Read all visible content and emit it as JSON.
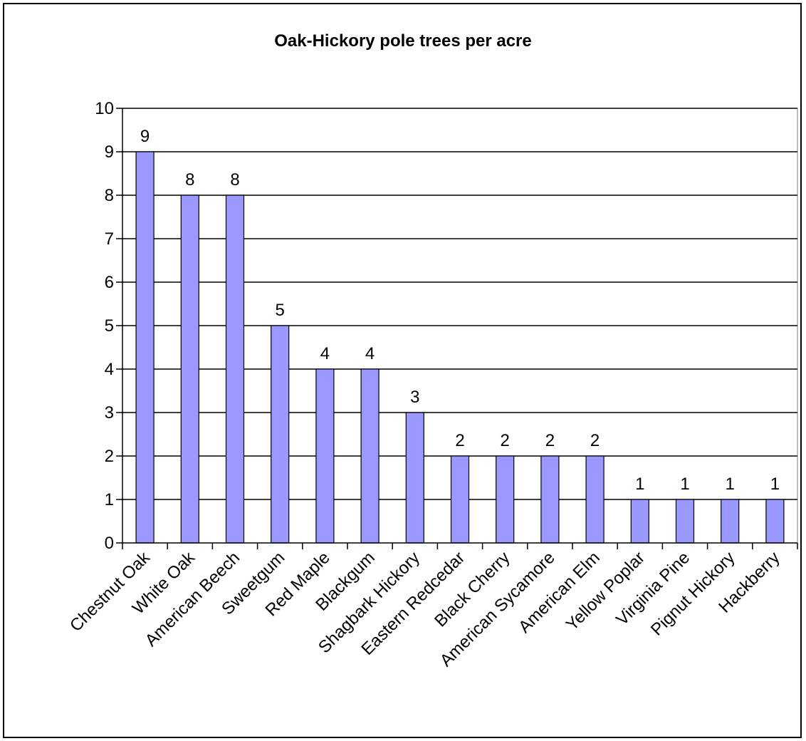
{
  "chart_data": {
    "type": "bar",
    "title": "Oak-Hickory pole trees per acre",
    "xlabel": "",
    "ylabel": "",
    "ylim": [
      0,
      10
    ],
    "yticks": [
      "0",
      "1",
      "2",
      "3",
      "4",
      "5",
      "6",
      "7",
      "8",
      "9",
      "10"
    ],
    "categories": [
      "Chestnut Oak",
      "White Oak",
      "American Beech",
      "Sweetgum",
      "Red Maple",
      "Blackgum",
      "Shagbark Hickory",
      "Eastern Redcedar",
      "Black Cherry",
      "American Sycamore",
      "American Elm",
      "Yellow Poplar",
      "Virginia Pine",
      "Pignut Hickory",
      "Hackberry"
    ],
    "values": [
      9,
      8,
      8,
      5,
      4,
      4,
      3,
      2,
      2,
      2,
      2,
      1,
      1,
      1,
      1
    ],
    "data_labels": [
      "9",
      "8",
      "8",
      "5",
      "4",
      "4",
      "3",
      "2",
      "2",
      "2",
      "2",
      "1",
      "1",
      "1",
      "1"
    ],
    "grid": true,
    "legend": "none",
    "colors": {
      "bar_fill": "#9999ff",
      "bar_stroke": "#000000",
      "grid": "#000000",
      "plot_border": "#808080"
    }
  }
}
